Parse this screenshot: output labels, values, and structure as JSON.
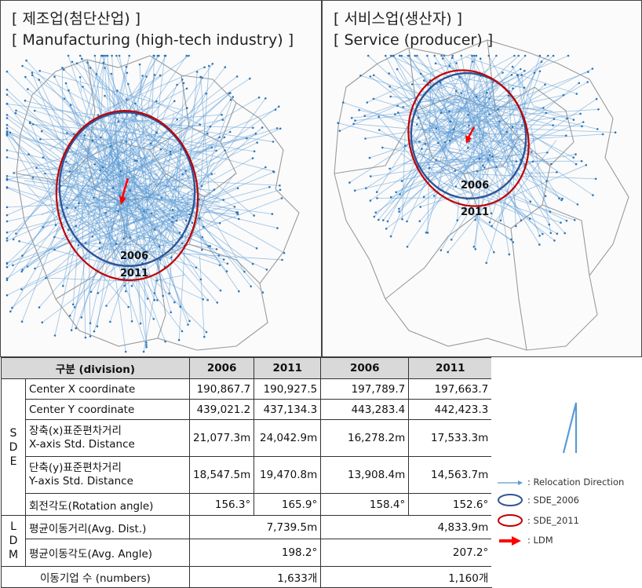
{
  "panels": {
    "left": {
      "title_line1": "[ 제조업(첨단산업) ]",
      "title_line2": "[ Manufacturing (high-tech industry) ]",
      "label_2006": "2006",
      "label_2011": "2011"
    },
    "right": {
      "title_line1": "[ 서비스업(생산자) ]",
      "title_line2": "[ Service (producer) ]",
      "label_2006": "2006",
      "label_2011": "2011"
    }
  },
  "colors": {
    "sde_2006": "#2f5597",
    "sde_2011": "#c00000",
    "ldm": "#ff0000",
    "relocation": "#5b9bd5"
  },
  "table": {
    "header": {
      "division": "구분 (division)",
      "y1": "2006",
      "y2": "2011",
      "y3": "2006",
      "y4": "2011"
    },
    "sde_group": [
      "S",
      "D",
      "E"
    ],
    "ldm_group": [
      "L",
      "D",
      "M"
    ],
    "rows": {
      "center_x": {
        "label": "Center X coordinate",
        "v": [
          "190,867.7",
          "190,927.5",
          "197,789.7",
          "197,663.7"
        ]
      },
      "center_y": {
        "label": "Center Y coordinate",
        "v": [
          "439,021.2",
          "437,134.3",
          "443,283.4",
          "442,423.3"
        ]
      },
      "x_std": {
        "label_ko": "장축(x)표준편차거리",
        "label_en": "X-axis Std. Distance",
        "v": [
          "21,077.3m",
          "24,042.9m",
          "16,278.2m",
          "17,533.3m"
        ]
      },
      "y_std": {
        "label_ko": "단축(y)표준편차거리",
        "label_en": "Y-axis Std. Distance",
        "v": [
          "18,547.5m",
          "19,470.8m",
          "13,908.4m",
          "14,563.7m"
        ]
      },
      "rotation": {
        "label": "회전각도(Rotation angle)",
        "v": [
          "156.3°",
          "165.9°",
          "158.4°",
          "152.6°"
        ]
      },
      "avg_dist": {
        "label": "평균이동거리(Avg. Dist.)",
        "v": [
          "7,739.5m",
          "4,833.9m"
        ]
      },
      "avg_angle": {
        "label": "평균이동각도(Avg. Angle)",
        "v": [
          "198.2°",
          "207.2°"
        ]
      },
      "numbers": {
        "label": "이동기업 수 (numbers)",
        "v": [
          "1,633개",
          "1,160개"
        ]
      }
    }
  },
  "legend": {
    "relocation": ": Relocation Direction",
    "sde_2006": ": SDE_2006",
    "sde_2011": ": SDE_2011",
    "ldm": ": LDM"
  }
}
